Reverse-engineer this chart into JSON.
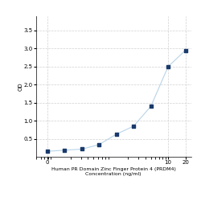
{
  "x": [
    0.078,
    0.156,
    0.313,
    0.625,
    1.25,
    2.5,
    5,
    10,
    20
  ],
  "y": [
    0.152,
    0.182,
    0.212,
    0.338,
    0.625,
    0.85,
    1.4,
    2.5,
    2.95
  ],
  "line_color": "#b8d4e8",
  "marker_color": "#1a3a6b",
  "marker_size": 3.5,
  "xlabel_line1": "Human PR Domain Zinc Finger Protein 4 (PRDM4)",
  "xlabel_line2": "Concentration (ng/ml)",
  "ylabel": "OD",
  "xticks": [
    0,
    10,
    20
  ],
  "xticklabels": [
    "0",
    "10",
    "20"
  ],
  "yticks": [
    0.5,
    1.0,
    1.5,
    2.0,
    2.5,
    3.0,
    3.5
  ],
  "xlim": [
    0.05,
    25
  ],
  "ylim": [
    0.0,
    3.9
  ],
  "grid_color": "#d0d0d0",
  "bg_color": "#ffffff",
  "fig_bg_color": "#ffffff",
  "label_fontsize": 4.5,
  "tick_fontsize": 5
}
